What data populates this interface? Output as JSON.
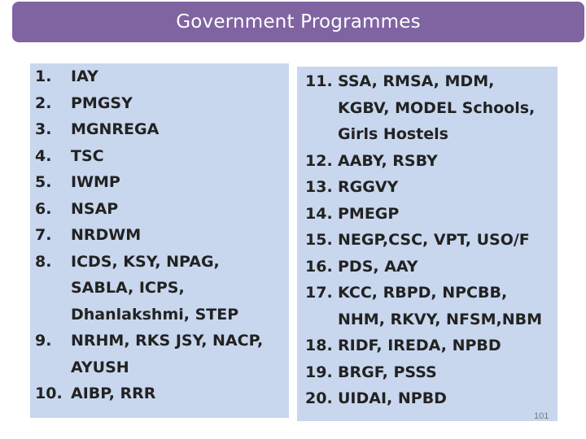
{
  "title": "Government Programmes",
  "page_number": "101",
  "left_column": [
    {
      "num": "1.",
      "lines": [
        "IAY"
      ]
    },
    {
      "num": "2.",
      "lines": [
        "PMGSY"
      ]
    },
    {
      "num": "3.",
      "lines": [
        "MGNREGA"
      ]
    },
    {
      "num": "4.",
      "lines": [
        "TSC"
      ]
    },
    {
      "num": "5.",
      "lines": [
        "IWMP"
      ]
    },
    {
      "num": "6.",
      "lines": [
        "NSAP"
      ]
    },
    {
      "num": "7.",
      "lines": [
        "NRDWM"
      ]
    },
    {
      "num": "8.",
      "lines": [
        "ICDS, KSY, NPAG,",
        "SABLA, ICPS,",
        "Dhanlakshmi, STEP"
      ]
    },
    {
      "num": "9.",
      "lines": [
        "NRHM, RKS JSY, NACP,",
        "AYUSH"
      ]
    },
    {
      "num": "10.",
      "lines": [
        "AIBP, RRR"
      ]
    }
  ],
  "right_column": [
    {
      "num": "11.",
      "lines": [
        "SSA, RMSA, MDM,",
        "KGBV, MODEL Schools,",
        "Girls Hostels"
      ]
    },
    {
      "num": "12.",
      "lines": [
        "AABY, RSBY"
      ]
    },
    {
      "num": "13.",
      "lines": [
        "RGGVY"
      ]
    },
    {
      "num": "14.",
      "lines": [
        "PMEGP"
      ]
    },
    {
      "num": "15.",
      "lines": [
        "NEGP,CSC, VPT, USO/F"
      ]
    },
    {
      "num": "16.",
      "lines": [
        "PDS, AAY"
      ]
    },
    {
      "num": "17.",
      "lines": [
        "KCC, RBPD, NPCBB,",
        "NHM, RKVY, NFSM,NBM"
      ]
    },
    {
      "num": "18.",
      "lines": [
        "RIDF, IREDA, NPBD"
      ]
    },
    {
      "num": "19.",
      "lines": [
        "BRGF, PSSS"
      ]
    },
    {
      "num": "20.",
      "lines": [
        "UIDAI, NPBD"
      ]
    }
  ]
}
